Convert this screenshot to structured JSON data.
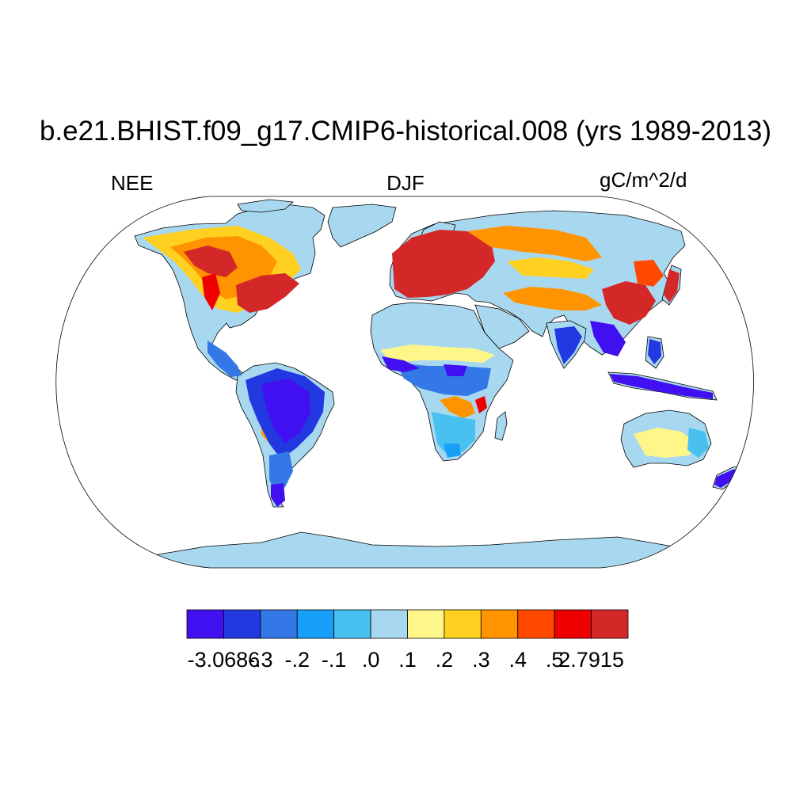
{
  "title": "b.e21.BHIST.f09_g17.CMIP6-historical.008 (yrs 1989-2013)",
  "left_label": "NEE",
  "center_label": "DJF",
  "right_label": "gC/m^2/d",
  "colorbar": {
    "colors": [
      "#4010f0",
      "#2238e0",
      "#3478e8",
      "#18a0f8",
      "#48c0f0",
      "#a8d8f0",
      "#fef688",
      "#ffd020",
      "#ff9400",
      "#ff4800",
      "#ee0000",
      "#d42828"
    ],
    "labels": [
      "-3.0686",
      "-.3",
      "-.2",
      "-.1",
      ".0",
      ".1",
      ".2",
      ".3",
      ".4",
      ".5",
      "2.7915"
    ]
  },
  "colors": {
    "land_base": "#a8d8f0",
    "coast": "#000000",
    "ocean": "#ffffff"
  }
}
